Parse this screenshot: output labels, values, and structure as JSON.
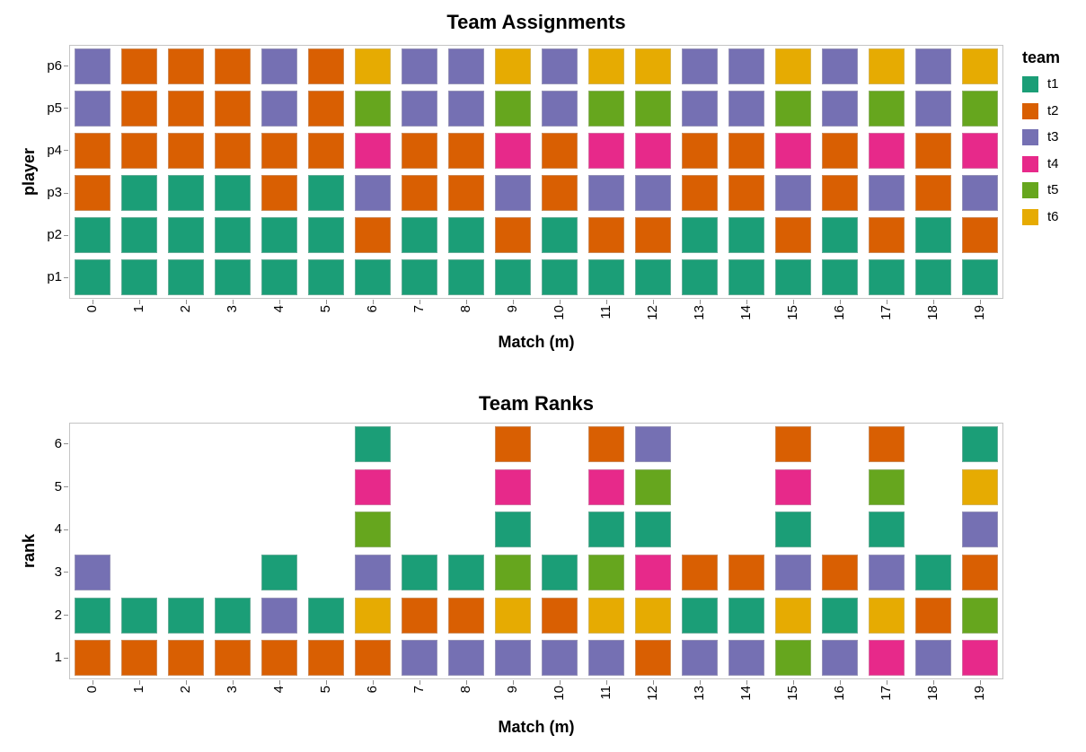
{
  "palette": {
    "t1": "#1b9e77",
    "t2": "#d95f02",
    "t3": "#7570b3",
    "t4": "#e7298a",
    "t5": "#66a61e",
    "t6": "#e6ab02"
  },
  "legend": {
    "title": "team",
    "position": "right",
    "entries": [
      {
        "label": "t1",
        "color_key": "t1"
      },
      {
        "label": "t2",
        "color_key": "t2"
      },
      {
        "label": "t3",
        "color_key": "t3"
      },
      {
        "label": "t4",
        "color_key": "t4"
      },
      {
        "label": "t5",
        "color_key": "t5"
      },
      {
        "label": "t6",
        "color_key": "t6"
      }
    ]
  },
  "chart_data": [
    {
      "type": "heatmap",
      "title": "Team Assignments",
      "xlabel": "Match (m)",
      "ylabel": "player",
      "grid": "off",
      "x_ticks": [
        "0",
        "1",
        "2",
        "3",
        "4",
        "5",
        "6",
        "7",
        "8",
        "9",
        "10",
        "11",
        "12",
        "13",
        "14",
        "15",
        "16",
        "17",
        "18",
        "19"
      ],
      "y_ticks_top_to_bottom": [
        "p6",
        "p5",
        "p4",
        "p3",
        "p2",
        "p1"
      ],
      "rows": [
        {
          "label": "p6",
          "teams": [
            "t3",
            "t2",
            "t2",
            "t2",
            "t3",
            "t2",
            "t6",
            "t3",
            "t3",
            "t6",
            "t3",
            "t6",
            "t6",
            "t3",
            "t3",
            "t6",
            "t3",
            "t6",
            "t3",
            "t6"
          ]
        },
        {
          "label": "p5",
          "teams": [
            "t3",
            "t2",
            "t2",
            "t2",
            "t3",
            "t2",
            "t5",
            "t3",
            "t3",
            "t5",
            "t3",
            "t5",
            "t5",
            "t3",
            "t3",
            "t5",
            "t3",
            "t5",
            "t3",
            "t5"
          ]
        },
        {
          "label": "p4",
          "teams": [
            "t2",
            "t2",
            "t2",
            "t2",
            "t2",
            "t2",
            "t4",
            "t2",
            "t2",
            "t4",
            "t2",
            "t4",
            "t4",
            "t2",
            "t2",
            "t4",
            "t2",
            "t4",
            "t2",
            "t4"
          ]
        },
        {
          "label": "p3",
          "teams": [
            "t2",
            "t1",
            "t1",
            "t1",
            "t2",
            "t1",
            "t3",
            "t2",
            "t2",
            "t3",
            "t2",
            "t3",
            "t3",
            "t2",
            "t2",
            "t3",
            "t2",
            "t3",
            "t2",
            "t3"
          ]
        },
        {
          "label": "p2",
          "teams": [
            "t1",
            "t1",
            "t1",
            "t1",
            "t1",
            "t1",
            "t2",
            "t1",
            "t1",
            "t2",
            "t1",
            "t2",
            "t2",
            "t1",
            "t1",
            "t2",
            "t1",
            "t2",
            "t1",
            "t2"
          ]
        },
        {
          "label": "p1",
          "teams": [
            "t1",
            "t1",
            "t1",
            "t1",
            "t1",
            "t1",
            "t1",
            "t1",
            "t1",
            "t1",
            "t1",
            "t1",
            "t1",
            "t1",
            "t1",
            "t1",
            "t1",
            "t1",
            "t1",
            "t1"
          ]
        }
      ]
    },
    {
      "type": "heatmap",
      "title": "Team Ranks",
      "xlabel": "Match (m)",
      "ylabel": "rank",
      "grid": "off",
      "x_ticks": [
        "0",
        "1",
        "2",
        "3",
        "4",
        "5",
        "6",
        "7",
        "8",
        "9",
        "10",
        "11",
        "12",
        "13",
        "14",
        "15",
        "16",
        "17",
        "18",
        "19"
      ],
      "y_ticks_top_to_bottom": [
        "6",
        "5",
        "4",
        "3",
        "2",
        "1"
      ],
      "rows": [
        {
          "label": "6",
          "teams": [
            null,
            null,
            null,
            null,
            null,
            null,
            "t1",
            null,
            null,
            "t2",
            null,
            "t2",
            "t3",
            null,
            null,
            "t2",
            null,
            "t2",
            null,
            "t1"
          ]
        },
        {
          "label": "5",
          "teams": [
            null,
            null,
            null,
            null,
            null,
            null,
            "t4",
            null,
            null,
            "t4",
            null,
            "t4",
            "t5",
            null,
            null,
            "t4",
            null,
            "t5",
            null,
            "t6"
          ]
        },
        {
          "label": "4",
          "teams": [
            null,
            null,
            null,
            null,
            null,
            null,
            "t5",
            null,
            null,
            "t1",
            null,
            "t1",
            "t1",
            null,
            null,
            "t1",
            null,
            "t1",
            null,
            "t3"
          ]
        },
        {
          "label": "3",
          "teams": [
            "t3",
            null,
            null,
            null,
            "t1",
            null,
            "t3",
            "t1",
            "t1",
            "t5",
            "t1",
            "t5",
            "t4",
            "t2",
            "t2",
            "t3",
            "t2",
            "t3",
            "t1",
            "t2"
          ]
        },
        {
          "label": "2",
          "teams": [
            "t1",
            "t1",
            "t1",
            "t1",
            "t3",
            "t1",
            "t6",
            "t2",
            "t2",
            "t6",
            "t2",
            "t6",
            "t6",
            "t1",
            "t1",
            "t6",
            "t1",
            "t6",
            "t2",
            "t5"
          ]
        },
        {
          "label": "1",
          "teams": [
            "t2",
            "t2",
            "t2",
            "t2",
            "t2",
            "t2",
            "t2",
            "t3",
            "t3",
            "t3",
            "t3",
            "t3",
            "t2",
            "t3",
            "t3",
            "t5",
            "t3",
            "t4",
            "t3",
            "t4"
          ]
        }
      ]
    }
  ]
}
